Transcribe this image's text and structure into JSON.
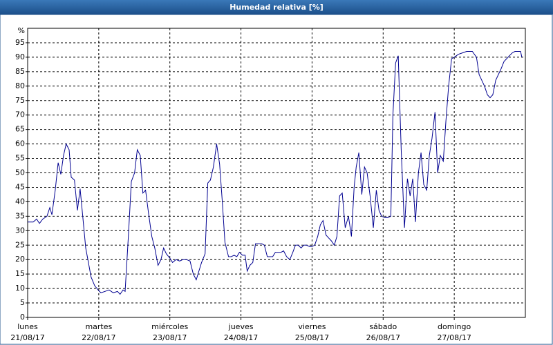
{
  "chart_data": {
    "type": "line",
    "title": "Humedad relativa [%]",
    "y_label": "%",
    "x": [
      0,
      1.9,
      3.0,
      4.0,
      5.1,
      6.5,
      7.5,
      8.2,
      9.3,
      10.3,
      11.2,
      12.1,
      13.0,
      14.0,
      14.7,
      15.8,
      16.8,
      17.7,
      18.6,
      19.6,
      20.5,
      21.4,
      22.6,
      23.8,
      24.7,
      26.1,
      27.5,
      28.9,
      30.3,
      31.2,
      32.2,
      32.9,
      34.0,
      35.0,
      36.1,
      37.0,
      38.0,
      38.9,
      39.8,
      40.8,
      41.9,
      42.9,
      44.0,
      45.0,
      45.9,
      46.8,
      48.0,
      48.9,
      50.1,
      51.3,
      52.4,
      53.6,
      54.8,
      55.9,
      56.9,
      57.8,
      58.7,
      59.9,
      60.8,
      61.7,
      62.7,
      63.8,
      64.8,
      65.7,
      66.6,
      67.8,
      68.7,
      69.7,
      70.6,
      71.5,
      72.5,
      73.4,
      74.1,
      75.0,
      76.0,
      76.9,
      78.1,
      79.0,
      79.9,
      80.9,
      81.8,
      82.7,
      83.6,
      84.6,
      85.5,
      86.4,
      87.4,
      88.5,
      89.5,
      90.4,
      91.3,
      92.3,
      93.2,
      94.1,
      95.1,
      96.0,
      96.9,
      97.9,
      98.8,
      99.7,
      100.7,
      101.6,
      102.5,
      103.5,
      104.4,
      105.3,
      106.2,
      107.2,
      108.3,
      109.3,
      110.2,
      110.9,
      111.8,
      112.8,
      113.7,
      114.6,
      115.6,
      116.7,
      117.7,
      118.6,
      119.5,
      120.5,
      121.6,
      122.6,
      123.3,
      124.2,
      125.1,
      126.1,
      127.2,
      128.2,
      129.1,
      130.0,
      130.9,
      131.9,
      132.8,
      133.7,
      134.7,
      135.6,
      136.5,
      137.5,
      138.4,
      139.3,
      140.3,
      141.2,
      142.1,
      143.1,
      144.0,
      145.4,
      146.8,
      148.2,
      150.1,
      151.5,
      152.4,
      153.3,
      154.2,
      155.2,
      156.1,
      157.0,
      158.0,
      158.9,
      159.8,
      160.8,
      161.7,
      162.6,
      163.6,
      164.5,
      166.4,
      166.8
    ],
    "series": [
      {
        "name": "Humedad relativa",
        "color": "#000090",
        "values": [
          33,
          33,
          34,
          32.5,
          34,
          35,
          38,
          35.5,
          44,
          53.5,
          49.5,
          56,
          60,
          58,
          48.5,
          47.5,
          37,
          44.5,
          35,
          24,
          19,
          14,
          11,
          9.5,
          8.5,
          9,
          9.5,
          8.5,
          9,
          8,
          9.5,
          9,
          28,
          47,
          50,
          58,
          56,
          43,
          44,
          36,
          28,
          24,
          18,
          20,
          24,
          22,
          20.5,
          19,
          20,
          19.5,
          20,
          20,
          19.5,
          15,
          13,
          16,
          19,
          22,
          46.5,
          47.5,
          52,
          60,
          53,
          40,
          26,
          21,
          21,
          21.5,
          21,
          22.5,
          21.5,
          21.5,
          16,
          18,
          19,
          25.5,
          25.5,
          25.5,
          25,
          21,
          21,
          21,
          22.5,
          22.5,
          22.5,
          23,
          21,
          20,
          22.5,
          25,
          25,
          24,
          25,
          25,
          24.5,
          24.5,
          25,
          28,
          32,
          33.5,
          28.5,
          27.5,
          26.5,
          25,
          28,
          42,
          43,
          31,
          35,
          28,
          45,
          52,
          57,
          42.5,
          52,
          50,
          42,
          31,
          44,
          37,
          35,
          34.5,
          34.5,
          35,
          70,
          88,
          90.5,
          58,
          31,
          48,
          42,
          48,
          33,
          50,
          57,
          46,
          44,
          56,
          62,
          71,
          50,
          56,
          54,
          68,
          80,
          89.5,
          90,
          91,
          91.5,
          92,
          92,
          90,
          84,
          82,
          80,
          77,
          76,
          77,
          82,
          84,
          86,
          88.5,
          89.5,
          90.5,
          91.5,
          92,
          92,
          90
        ]
      }
    ],
    "xlim": [
      0,
      168
    ],
    "xticks": [
      {
        "value": 0,
        "label": "lunes",
        "date": "21/08/17"
      },
      {
        "value": 24,
        "label": "martes",
        "date": "22/08/17"
      },
      {
        "value": 48,
        "label": "miércoles",
        "date": "23/08/17"
      },
      {
        "value": 72,
        "label": "jueves",
        "date": "24/08/17"
      },
      {
        "value": 96,
        "label": "viernes",
        "date": "25/08/17"
      },
      {
        "value": 120,
        "label": "sábado",
        "date": "26/08/17"
      },
      {
        "value": 144,
        "label": "domingo",
        "date": "27/08/17"
      }
    ],
    "ylim": [
      0,
      100
    ],
    "yticks": [
      0,
      5,
      10,
      15,
      20,
      25,
      30,
      35,
      40,
      45,
      50,
      55,
      60,
      65,
      70,
      75,
      80,
      85,
      90,
      95
    ],
    "grid": true
  }
}
